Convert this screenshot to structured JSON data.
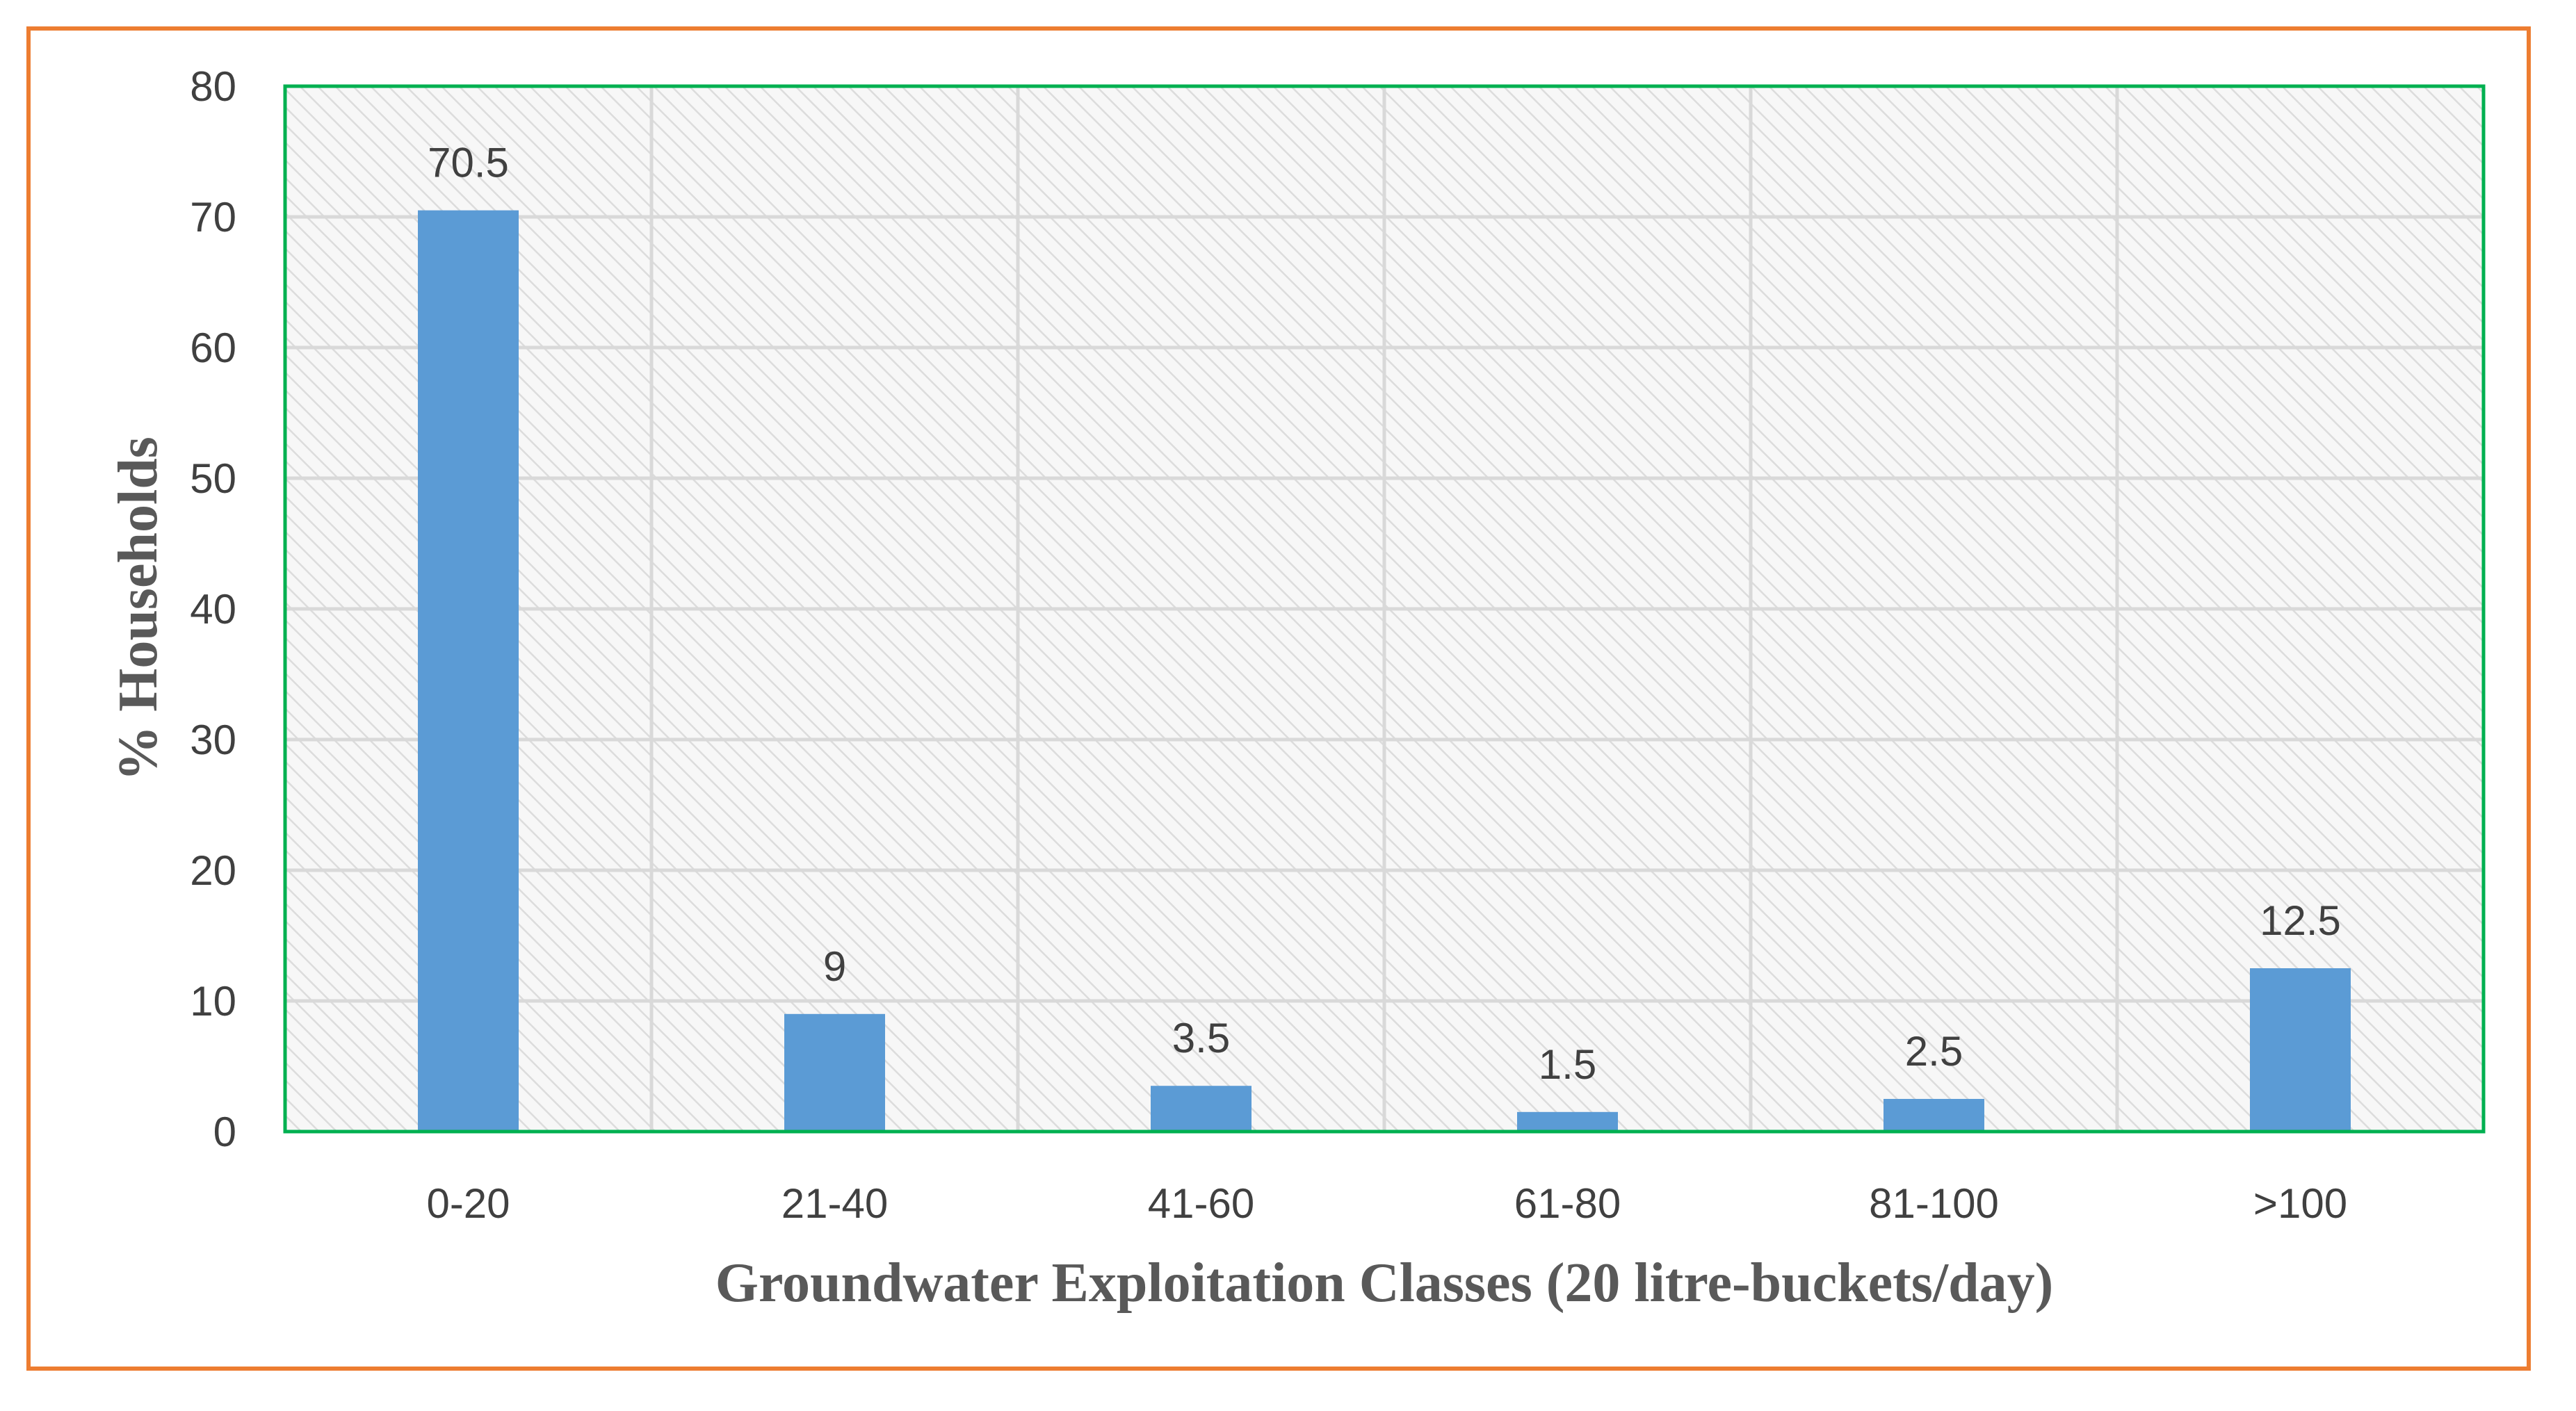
{
  "chart_data": {
    "type": "bar",
    "title": "",
    "xlabel": "Groundwater Exploitation Classes (20 litre-buckets/day)",
    "ylabel": "% Households",
    "categories": [
      "0-20",
      "21-40",
      "41-60",
      "61-80",
      "81-100",
      ">100"
    ],
    "values": [
      70.5,
      9,
      3.5,
      1.5,
      2.5,
      12.5
    ],
    "data_labels": [
      "70.5",
      "9",
      "3.5",
      "1.5",
      "2.5",
      "12.5"
    ],
    "ylim": [
      0,
      80
    ],
    "yticks": [
      0,
      10,
      20,
      30,
      40,
      50,
      60,
      70,
      80
    ],
    "grid": true,
    "legend": "none",
    "colors": {
      "bar": "#5B9BD5",
      "plot_border": "#00B050",
      "frame_border": "#ED7D31",
      "gridline": "#D9D9D9"
    }
  }
}
